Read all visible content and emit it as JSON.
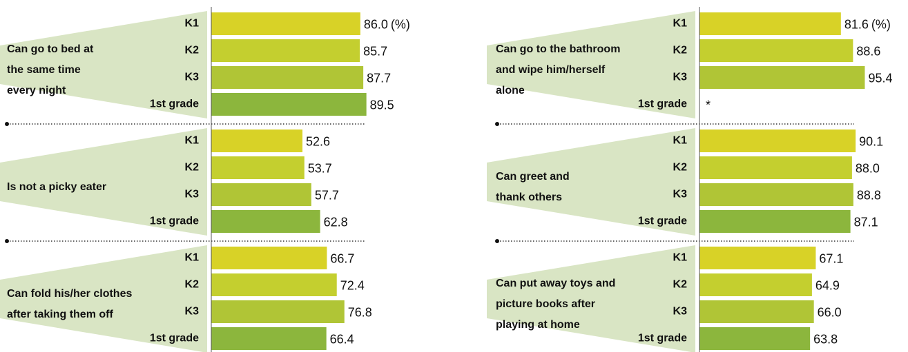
{
  "chart_data": [
    {
      "type": "bar",
      "title": [
        "Can go to bed at",
        "the same time",
        "every night"
      ],
      "categories": [
        "K1",
        "K2",
        "K3",
        "1st grade"
      ],
      "values": [
        86.0,
        85.7,
        87.7,
        89.5
      ],
      "value_labels": [
        "86.0",
        "85.7",
        "87.7",
        "89.5"
      ],
      "unit_label": "(%)",
      "colors": [
        "#d8d227",
        "#c4cf2f",
        "#b0c536",
        "#8cb63d"
      ],
      "xlim": [
        0,
        100
      ]
    },
    {
      "type": "bar",
      "title": [
        "Is not a picky eater"
      ],
      "categories": [
        "K1",
        "K2",
        "K3",
        "1st grade"
      ],
      "values": [
        52.6,
        53.7,
        57.7,
        62.8
      ],
      "value_labels": [
        "52.6",
        "53.7",
        "57.7",
        "62.8"
      ],
      "colors": [
        "#d8d227",
        "#c4cf2f",
        "#b0c536",
        "#8cb63d"
      ],
      "xlim": [
        0,
        100
      ]
    },
    {
      "type": "bar",
      "title": [
        "Can fold his/her clothes",
        "after taking them off"
      ],
      "categories": [
        "K1",
        "K2",
        "K3",
        "1st grade"
      ],
      "values": [
        66.7,
        72.4,
        76.8,
        66.4
      ],
      "value_labels": [
        "66.7",
        "72.4",
        "76.8",
        "66.4"
      ],
      "colors": [
        "#d8d227",
        "#c4cf2f",
        "#b0c536",
        "#8cb63d"
      ],
      "xlim": [
        0,
        100
      ]
    },
    {
      "type": "bar",
      "title": [
        "Can go to the bathroom",
        "and wipe him/herself",
        "alone"
      ],
      "categories": [
        "K1",
        "K2",
        "K3",
        "1st grade"
      ],
      "values": [
        81.6,
        88.6,
        95.4,
        null
      ],
      "value_labels": [
        "81.6",
        "88.6",
        "95.4",
        "*"
      ],
      "unit_label": "(%)",
      "colors": [
        "#d8d227",
        "#c4cf2f",
        "#b0c536",
        "#8cb63d"
      ],
      "xlim": [
        0,
        100
      ]
    },
    {
      "type": "bar",
      "title": [
        "Can greet and",
        "thank others"
      ],
      "categories": [
        "K1",
        "K2",
        "K3",
        "1st grade"
      ],
      "values": [
        90.1,
        88.0,
        88.8,
        87.1
      ],
      "value_labels": [
        "90.1",
        "88.0",
        "88.8",
        "87.1"
      ],
      "colors": [
        "#d8d227",
        "#c4cf2f",
        "#b0c536",
        "#8cb63d"
      ],
      "xlim": [
        0,
        100
      ]
    },
    {
      "type": "bar",
      "title": [
        "Can put away toys and",
        "picture books after",
        "playing at home"
      ],
      "categories": [
        "K1",
        "K2",
        "K3",
        "1st grade"
      ],
      "values": [
        67.1,
        64.9,
        66.0,
        63.8
      ],
      "value_labels": [
        "67.1",
        "64.9",
        "66.0",
        "63.8"
      ],
      "colors": [
        "#d8d227",
        "#c4cf2f",
        "#b0c536",
        "#8cb63d"
      ],
      "xlim": [
        0,
        100
      ]
    }
  ]
}
